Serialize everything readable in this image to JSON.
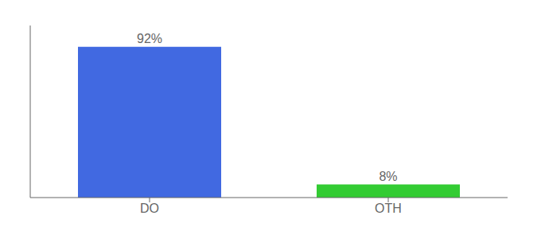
{
  "chart_data": {
    "type": "bar",
    "categories": [
      "DO",
      "OTH"
    ],
    "values": [
      92,
      8
    ],
    "value_labels": [
      "92%",
      "8%"
    ],
    "colors": [
      "#4169e1",
      "#33cc33"
    ],
    "ylim": [
      0,
      105
    ],
    "yticks": [],
    "data_labels": true,
    "tick_labels": "x",
    "grid": false
  }
}
